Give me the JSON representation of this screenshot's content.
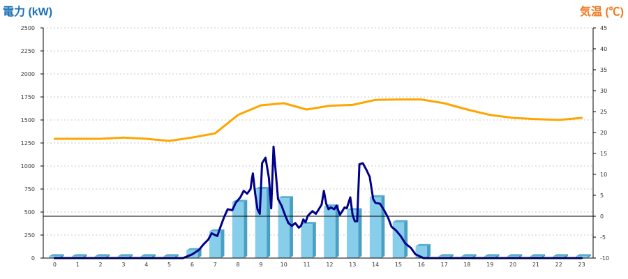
{
  "chart_data": {
    "type": "bar+line",
    "left_axis": {
      "title": "電力 (kW)",
      "min": 0,
      "max": 2500,
      "step": 250,
      "color": "#1a6fb5"
    },
    "right_axis": {
      "title": "気温 (℃)",
      "min": -10,
      "max": 45,
      "step": 5,
      "color": "#f07820"
    },
    "grid": true,
    "x": [
      "0",
      "1",
      "2",
      "3",
      "4",
      "5",
      "6",
      "7",
      "8",
      "9",
      "10",
      "11",
      "12",
      "13",
      "14",
      "15",
      "16",
      "17",
      "18",
      "19",
      "20",
      "21",
      "22",
      "23"
    ],
    "series": [
      {
        "kind": "bar",
        "axis": "left",
        "color": "#87ceeb",
        "values": [
          20,
          20,
          20,
          20,
          20,
          20,
          85,
          290,
          610,
          750,
          650,
          370,
          560,
          520,
          660,
          390,
          130,
          20,
          20,
          20,
          20,
          20,
          20,
          20
        ]
      },
      {
        "kind": "line",
        "axis": "left",
        "color": "#00008b",
        "points": [
          [
            0,
            0
          ],
          [
            1,
            0
          ],
          [
            2,
            0
          ],
          [
            3,
            0
          ],
          [
            4,
            0
          ],
          [
            5,
            0
          ],
          [
            5.6,
            0
          ],
          [
            6.0,
            40
          ],
          [
            6.3,
            90
          ],
          [
            6.5,
            150
          ],
          [
            6.7,
            200
          ],
          [
            6.85,
            270
          ],
          [
            7.0,
            250
          ],
          [
            7.1,
            240
          ],
          [
            7.25,
            350
          ],
          [
            7.4,
            450
          ],
          [
            7.55,
            530
          ],
          [
            7.75,
            520
          ],
          [
            7.9,
            600
          ],
          [
            8.1,
            660
          ],
          [
            8.25,
            730
          ],
          [
            8.4,
            700
          ],
          [
            8.55,
            750
          ],
          [
            8.6,
            850
          ],
          [
            8.65,
            920
          ],
          [
            8.75,
            700
          ],
          [
            8.85,
            530
          ],
          [
            8.95,
            480
          ],
          [
            9.05,
            1030
          ],
          [
            9.2,
            1090
          ],
          [
            9.35,
            870
          ],
          [
            9.45,
            540
          ],
          [
            9.55,
            1210
          ],
          [
            9.65,
            920
          ],
          [
            9.75,
            640
          ],
          [
            9.9,
            570
          ],
          [
            10.05,
            470
          ],
          [
            10.2,
            380
          ],
          [
            10.35,
            350
          ],
          [
            10.5,
            380
          ],
          [
            10.65,
            330
          ],
          [
            10.75,
            350
          ],
          [
            10.85,
            420
          ],
          [
            10.95,
            390
          ],
          [
            11.05,
            460
          ],
          [
            11.25,
            510
          ],
          [
            11.4,
            480
          ],
          [
            11.5,
            520
          ],
          [
            11.65,
            580
          ],
          [
            11.75,
            730
          ],
          [
            11.85,
            590
          ],
          [
            11.95,
            530
          ],
          [
            12.05,
            550
          ],
          [
            12.2,
            530
          ],
          [
            12.3,
            570
          ],
          [
            12.45,
            470
          ],
          [
            12.55,
            510
          ],
          [
            12.65,
            550
          ],
          [
            12.75,
            540
          ],
          [
            12.85,
            620
          ],
          [
            12.9,
            660
          ],
          [
            13.0,
            470
          ],
          [
            13.1,
            400
          ],
          [
            13.2,
            400
          ],
          [
            13.3,
            1020
          ],
          [
            13.45,
            1030
          ],
          [
            13.6,
            960
          ],
          [
            13.75,
            880
          ],
          [
            13.9,
            640
          ],
          [
            14.0,
            600
          ],
          [
            14.2,
            590
          ],
          [
            14.4,
            510
          ],
          [
            14.55,
            440
          ],
          [
            14.7,
            340
          ],
          [
            14.9,
            300
          ],
          [
            15.1,
            240
          ],
          [
            15.3,
            160
          ],
          [
            15.55,
            110
          ],
          [
            15.75,
            40
          ],
          [
            16.1,
            0
          ],
          [
            16.5,
            0
          ],
          [
            17,
            0
          ],
          [
            18,
            0
          ],
          [
            19,
            0
          ],
          [
            20,
            0
          ],
          [
            21,
            0
          ],
          [
            22,
            0
          ],
          [
            23,
            0
          ]
        ]
      },
      {
        "kind": "line",
        "axis": "right",
        "color": "#ffa500",
        "points": [
          [
            0,
            18.5
          ],
          [
            1,
            18.5
          ],
          [
            2,
            18.5
          ],
          [
            3,
            18.8
          ],
          [
            4,
            18.5
          ],
          [
            5,
            18.0
          ],
          [
            6,
            18.8
          ],
          [
            7,
            19.8
          ],
          [
            8,
            24.2
          ],
          [
            9,
            26.5
          ],
          [
            10,
            27.0
          ],
          [
            11,
            25.5
          ],
          [
            12,
            26.4
          ],
          [
            13,
            26.6
          ],
          [
            14,
            27.8
          ],
          [
            15,
            27.9
          ],
          [
            16,
            27.9
          ],
          [
            17,
            27.0
          ],
          [
            18,
            25.5
          ],
          [
            19,
            24.2
          ],
          [
            20,
            23.5
          ],
          [
            21,
            23.2
          ],
          [
            22,
            23.0
          ],
          [
            23,
            23.5
          ]
        ]
      }
    ]
  }
}
